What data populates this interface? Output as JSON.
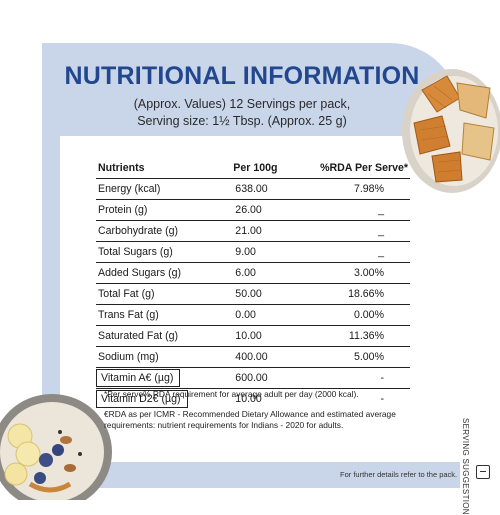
{
  "header": {
    "title": "NUTRITIONAL INFORMATION",
    "subtitle_line1": "(Approx. Values) 12 Servings per pack,",
    "subtitle_line2": "Serving size: 1½ Tbsp. (Approx. 25 g)"
  },
  "table": {
    "columns": [
      "Nutrients",
      "Per 100g",
      "%RDA Per Serve*"
    ],
    "rows": [
      {
        "nutrient": "Energy (kcal)",
        "per100g": "638.00",
        "rda": "7.98%"
      },
      {
        "nutrient": "Protein (g)",
        "per100g": "26.00",
        "rda": "_"
      },
      {
        "nutrient": "Carbohydrate (g)",
        "per100g": "21.00",
        "rda": "_"
      },
      {
        "nutrient": "Total Sugars (g)",
        "per100g": "9.00",
        "rda": "_"
      },
      {
        "nutrient": "Added Sugars (g)",
        "per100g": "6.00",
        "rda": "3.00%"
      },
      {
        "nutrient": "Total Fat (g)",
        "per100g": "50.00",
        "rda": "18.66%"
      },
      {
        "nutrient": "Trans Fat (g)",
        "per100g": "0.00",
        "rda": "0.00%"
      },
      {
        "nutrient": "Saturated Fat (g)",
        "per100g": "10.00",
        "rda": "11.36%"
      },
      {
        "nutrient": "Sodium (mg)",
        "per100g": "400.00",
        "rda": "5.00%"
      },
      {
        "nutrient": "Vitamin A€ (µg)",
        "per100g": "600.00",
        "rda": "-"
      },
      {
        "nutrient": "Vitamin D2€ (µg)",
        "per100g": "10.00",
        "rda": "-"
      }
    ]
  },
  "notes": {
    "note1": "*Per serve% RDA requirement for average adult per day (2000 kcal).",
    "note2": "€RDA as per ICMR - Recommended Dietary Allowance and estimated average requirements: nutrient requirements for Indians - 2020 for adults."
  },
  "side_label": "SERVING SUGGESTION",
  "footer": "For further details refer to the pack.",
  "colors": {
    "title": "#23478e",
    "card": "#c9d6ea"
  },
  "icons": {
    "pack": "box-icon"
  }
}
